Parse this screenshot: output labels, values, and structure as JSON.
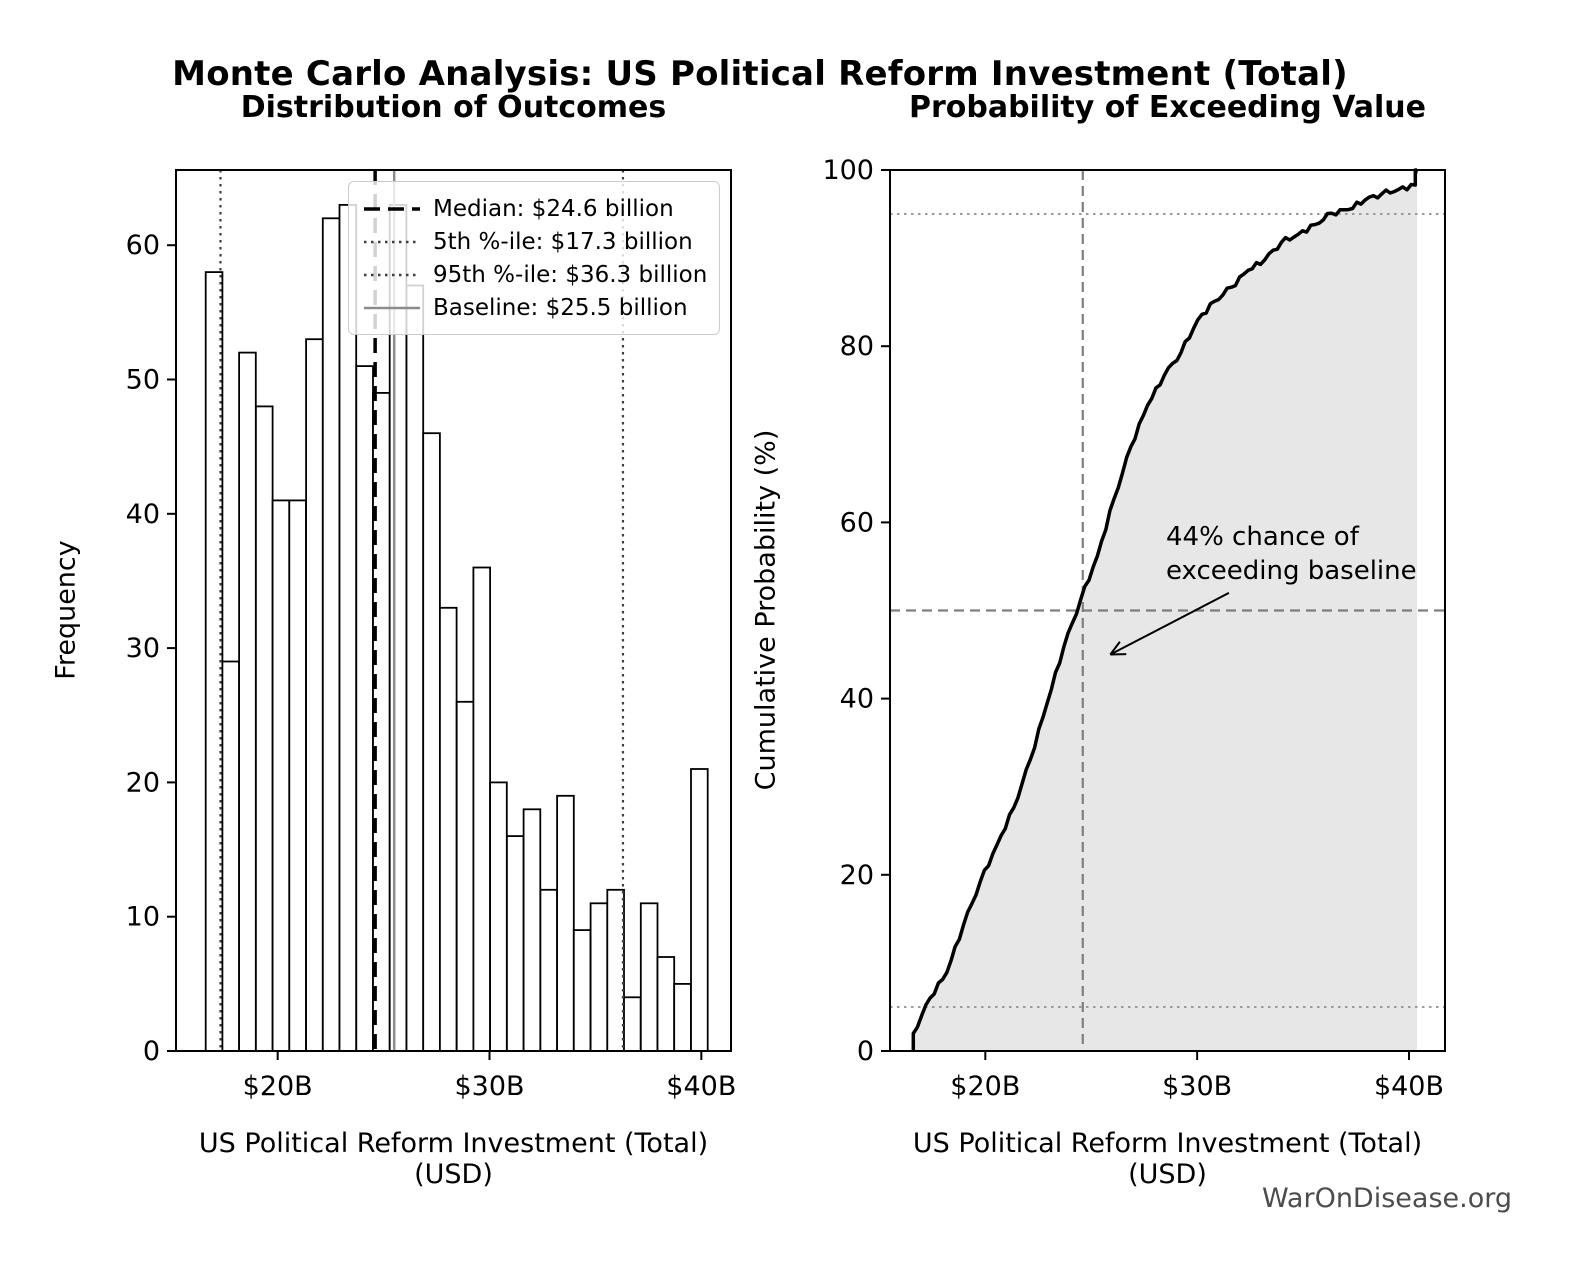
{
  "page": {
    "suptitle": "Monte Carlo Analysis: US Political Reform Investment (Total)",
    "watermark": "WarOnDisease.org",
    "background_color": "#ffffff",
    "text_color": "#000000"
  },
  "chart_data": [
    {
      "type": "bar",
      "role": "histogram",
      "title": "Distribution of Outcomes",
      "xlabel": "US Political Reform Investment (Total) (USD)",
      "ylabel": "Frequency",
      "bar_fill": "#ffffff",
      "bar_edge": "#000000",
      "bin_start": 16.6,
      "bin_width": 0.79,
      "values": [
        58,
        29,
        52,
        48,
        41,
        41,
        53,
        62,
        63,
        51,
        49,
        63,
        57,
        46,
        33,
        26,
        36,
        20,
        16,
        18,
        12,
        19,
        9,
        11,
        12,
        4,
        11,
        7,
        5,
        21
      ],
      "xlim": [
        15.2,
        41.4
      ],
      "ylim": [
        0,
        65.6
      ],
      "grid": false,
      "xticks": [
        {
          "value": 20,
          "label": "$20B"
        },
        {
          "value": 30,
          "label": "$30B"
        },
        {
          "value": 40,
          "label": "$40B"
        }
      ],
      "yticks": [
        {
          "value": 0,
          "label": "0"
        },
        {
          "value": 10,
          "label": "10"
        },
        {
          "value": 20,
          "label": "20"
        },
        {
          "value": 30,
          "label": "30"
        },
        {
          "value": 40,
          "label": "40"
        },
        {
          "value": 50,
          "label": "50"
        },
        {
          "value": 60,
          "label": "60"
        }
      ],
      "legend_position": "upper right",
      "ref_lines": {
        "median": {
          "value": 24.6,
          "label": "Median: $24.6 billion",
          "color": "#000000",
          "style": "dashed",
          "width": 3.5
        },
        "p5": {
          "value": 17.3,
          "label": "5th %-ile: $17.3 billion",
          "color": "#3f3f3f",
          "style": "dotted",
          "width": 2.2
        },
        "p95": {
          "value": 36.3,
          "label": "95th %-ile: $36.3 billion",
          "color": "#3f3f3f",
          "style": "dotted",
          "width": 2.2
        },
        "baseline": {
          "value": 25.5,
          "label": "Baseline: $25.5 billion",
          "color": "#8c8c8c",
          "style": "solid",
          "width": 2.5
        }
      }
    },
    {
      "type": "line",
      "role": "cumulative-distribution",
      "title": "Probability of Exceeding Value",
      "xlabel": "US Political Reform Investment (Total) (USD)",
      "ylabel": "Cumulative Probability (%)",
      "line_color": "#000000",
      "fill_color": "#e7e7e7",
      "xlim": [
        15.5,
        41.7
      ],
      "ylim": [
        0,
        100
      ],
      "xticks": [
        {
          "value": 20,
          "label": "$20B"
        },
        {
          "value": 30,
          "label": "$30B"
        },
        {
          "value": 40,
          "label": "$40B"
        }
      ],
      "yticks": [
        {
          "value": 0,
          "label": "0"
        },
        {
          "value": 20,
          "label": "20"
        },
        {
          "value": 40,
          "label": "40"
        },
        {
          "value": 60,
          "label": "60"
        },
        {
          "value": 80,
          "label": "80"
        },
        {
          "value": 100,
          "label": "100"
        }
      ],
      "cdf_points": [
        [
          16.6,
          0
        ],
        [
          16.6,
          2.0
        ],
        [
          17.39,
          6.0
        ],
        [
          18.18,
          8.9
        ],
        [
          18.97,
          14.3
        ],
        [
          19.76,
          19.2
        ],
        [
          20.55,
          23.4
        ],
        [
          21.34,
          27.6
        ],
        [
          22.13,
          33.1
        ],
        [
          22.92,
          39.5
        ],
        [
          23.71,
          45.9
        ],
        [
          24.5,
          51.2
        ],
        [
          25.29,
          56.2
        ],
        [
          26.08,
          62.7
        ],
        [
          26.87,
          68.6
        ],
        [
          27.66,
          73.3
        ],
        [
          28.45,
          76.7
        ],
        [
          29.24,
          79.3
        ],
        [
          30.03,
          83.0
        ],
        [
          30.82,
          85.1
        ],
        [
          31.61,
          86.7
        ],
        [
          32.4,
          88.6
        ],
        [
          33.19,
          89.8
        ],
        [
          33.98,
          91.8
        ],
        [
          34.77,
          92.7
        ],
        [
          35.56,
          93.8
        ],
        [
          36.35,
          95.1
        ],
        [
          37.14,
          95.5
        ],
        [
          37.93,
          96.6
        ],
        [
          38.72,
          97.3
        ],
        [
          39.51,
          97.8
        ],
        [
          40.3,
          98.3
        ],
        [
          40.3,
          100
        ],
        [
          40.38,
          100
        ]
      ],
      "dotted_hlines": [
        5,
        95
      ],
      "crosshair": {
        "x": 24.6,
        "y": 50
      },
      "annotation": {
        "text": "44% chance of\nexceeding baseline",
        "arrow_tail": [
          31.5,
          52
        ],
        "arrow_head": [
          25.9,
          45
        ]
      }
    }
  ]
}
